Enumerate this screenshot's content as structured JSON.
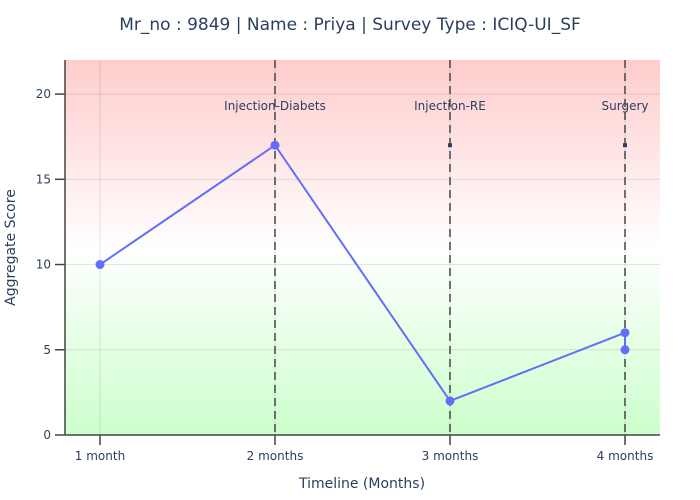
{
  "chart_data": {
    "type": "line",
    "title": "Mr_no : 9849 | Name : Priya | Survey Type : ICIQ-UI_SF",
    "xlabel": "Timeline (Months)",
    "ylabel": "Aggregate Score",
    "categories": [
      "1 month",
      "2 months",
      "3 months",
      "4 months"
    ],
    "ylim": [
      0,
      22
    ],
    "yticks": [
      0,
      5,
      10,
      15,
      20
    ],
    "grid": true,
    "series": [
      {
        "color": "#636efa",
        "points": [
          {
            "x": "1 month",
            "y": 10
          },
          {
            "x": "2 months",
            "y": 17
          },
          {
            "x": "3 months",
            "y": 2
          },
          {
            "x": "4 months",
            "y": 6
          },
          {
            "x": "4 months",
            "y": 5
          }
        ]
      }
    ],
    "events": [
      {
        "x": "2 months",
        "label": "Injection-Diabets",
        "marker_y": 17
      },
      {
        "x": "3 months",
        "label": "Injection-RE",
        "marker_y": 17
      },
      {
        "x": "4 months",
        "label": "Surgery",
        "marker_y": 17
      }
    ],
    "background_gradient": {
      "top": "#ffcccc",
      "middle": "#ffffff",
      "bottom": "#ccffcc"
    },
    "colors": {
      "line": "#636efa",
      "event_line": "#444444",
      "text": "#2a3f5f"
    }
  }
}
